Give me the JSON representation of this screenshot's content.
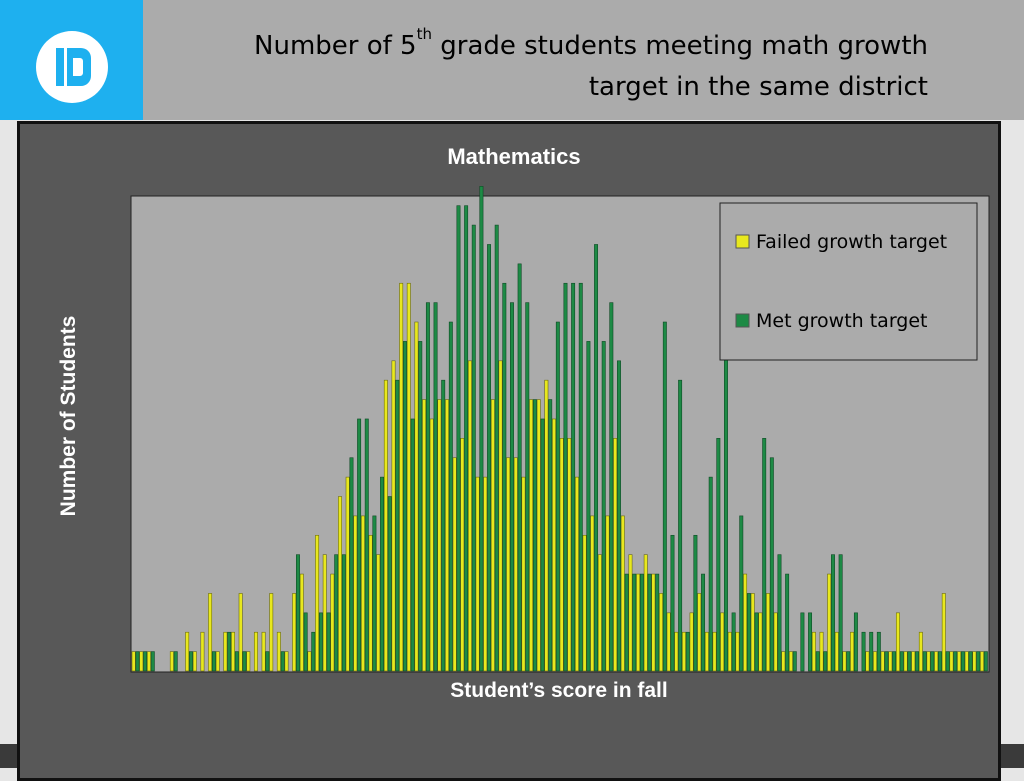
{
  "slide": {
    "title_main": "Number of 5",
    "title_sup": "th",
    "title_rest": " grade students meeting math growth",
    "title_line2": "target in the same district",
    "logo_icon": "brand-logo-icon",
    "colors": {
      "logo_bg": "#1eb0ef",
      "header_bg": "#ababab",
      "chart_bg": "#585858",
      "plot_bg": "#ababab"
    }
  },
  "chart_data": {
    "type": "bar",
    "title": "Mathematics",
    "xlabel": "Student’s score in fall",
    "ylabel": "Number of Students",
    "ylim": [
      0,
      24.5
    ],
    "grid": false,
    "legend_position": "top-right",
    "x_tick_labels": [],
    "y_tick_labels": [],
    "series": [
      {
        "name": "Failed growth target",
        "color": "#e8e81e",
        "values": [
          1,
          1,
          1,
          0,
          0,
          1,
          0,
          2,
          1,
          2,
          4,
          1,
          2,
          2,
          4,
          1,
          2,
          2,
          4,
          2,
          1,
          4,
          5,
          1,
          7,
          6,
          5,
          9,
          10,
          8,
          8,
          7,
          6,
          15,
          16,
          20,
          20,
          18,
          14,
          13,
          14,
          14,
          11,
          12,
          16,
          10,
          10,
          14,
          16,
          11,
          11,
          10,
          14,
          14,
          15,
          13,
          12,
          12,
          10,
          7,
          8,
          6,
          8,
          12,
          8,
          6,
          5,
          6,
          5,
          4,
          3,
          2,
          2,
          3,
          4,
          2,
          2,
          3,
          2,
          2,
          5,
          4,
          3,
          4,
          3,
          1,
          1,
          0,
          0,
          2,
          2,
          5,
          2,
          1,
          2,
          0,
          1,
          1,
          1,
          1,
          3,
          1,
          1,
          2,
          1,
          1,
          4,
          1,
          1,
          1,
          1,
          1
        ]
      },
      {
        "name": "Met growth target",
        "color": "#1d8a45",
        "values": [
          1,
          1,
          1,
          0,
          0,
          1,
          0,
          1,
          0,
          0,
          1,
          0,
          2,
          1,
          1,
          0,
          0,
          1,
          0,
          1,
          0,
          6,
          3,
          2,
          3,
          3,
          6,
          6,
          11,
          13,
          13,
          8,
          10,
          9,
          15,
          17,
          13,
          17,
          19,
          19,
          15,
          18,
          24,
          24,
          23,
          25,
          22,
          23,
          20,
          19,
          21,
          19,
          14,
          13,
          14,
          18,
          20,
          20,
          20,
          17,
          22,
          17,
          19,
          16,
          5,
          5,
          5,
          5,
          5,
          18,
          7,
          15,
          2,
          7,
          5,
          10,
          12,
          18,
          3,
          8,
          4,
          3,
          12,
          11,
          6,
          5,
          1,
          3,
          3,
          1,
          1,
          6,
          6,
          1,
          3,
          2,
          2,
          2,
          1,
          1,
          1,
          1,
          1,
          1,
          1,
          1,
          1,
          1,
          1,
          1,
          1,
          1
        ]
      }
    ]
  }
}
